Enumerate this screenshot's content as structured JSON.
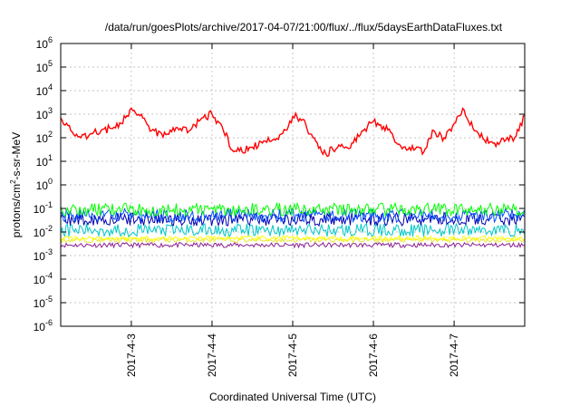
{
  "chart_data": {
    "type": "line",
    "title": "/data/run/goesPlots/archive/2017-04-07/21:00/flux/../flux/5daysEarthDataFluxes.txt",
    "xlabel": "Coordinated Universal Time (UTC)",
    "ylabel": "protons/cm²-s-sr-MeV",
    "yscale": "log",
    "ylim": [
      1e-06,
      1000000.0
    ],
    "y_ticks": [
      {
        "value": 1e-06,
        "base": "10",
        "exp": "-6"
      },
      {
        "value": 1e-05,
        "base": "10",
        "exp": "-5"
      },
      {
        "value": 0.0001,
        "base": "10",
        "exp": "-4"
      },
      {
        "value": 0.001,
        "base": "10",
        "exp": "-3"
      },
      {
        "value": 0.01,
        "base": "10",
        "exp": "-2"
      },
      {
        "value": 0.1,
        "base": "10",
        "exp": "-1"
      },
      {
        "value": 1,
        "base": "10",
        "exp": "0"
      },
      {
        "value": 10.0,
        "base": "10",
        "exp": "1"
      },
      {
        "value": 100.0,
        "base": "10",
        "exp": "2"
      },
      {
        "value": 1000.0,
        "base": "10",
        "exp": "3"
      },
      {
        "value": 10000.0,
        "base": "10",
        "exp": "4"
      },
      {
        "value": 100000.0,
        "base": "10",
        "exp": "5"
      },
      {
        "value": 1000000.0,
        "base": "10",
        "exp": "6"
      }
    ],
    "xlim": [
      "2017-04-02 03:00",
      "2017-04-07 21:00"
    ],
    "x_ticks": [
      "2017-4-3",
      "2017-4-4",
      "2017-4-5",
      "2017-4-6",
      "2017-4-7"
    ],
    "x_tick_dates": [
      "2017-04-03",
      "2017-04-04",
      "2017-04-05",
      "2017-04-06",
      "2017-04-07"
    ],
    "grid": true,
    "series": [
      {
        "color": "#ff0000",
        "x": [
          "2017-04-02 03:00",
          "2017-04-02 06:00",
          "2017-04-02 09:00",
          "2017-04-02 12:00",
          "2017-04-02 15:00",
          "2017-04-02 18:00",
          "2017-04-02 21:00",
          "2017-04-03 00:00",
          "2017-04-03 03:00",
          "2017-04-03 06:00",
          "2017-04-03 09:00",
          "2017-04-03 12:00",
          "2017-04-03 15:00",
          "2017-04-03 18:00",
          "2017-04-03 21:00",
          "2017-04-04 00:00",
          "2017-04-04 03:00",
          "2017-04-04 06:00",
          "2017-04-04 09:00",
          "2017-04-04 12:00",
          "2017-04-04 15:00",
          "2017-04-04 18:00",
          "2017-04-04 21:00",
          "2017-04-05 00:00",
          "2017-04-05 03:00",
          "2017-04-05 06:00",
          "2017-04-05 09:00",
          "2017-04-05 12:00",
          "2017-04-05 15:00",
          "2017-04-05 18:00",
          "2017-04-05 21:00",
          "2017-04-06 00:00",
          "2017-04-06 03:00",
          "2017-04-06 06:00",
          "2017-04-06 09:00",
          "2017-04-06 12:00",
          "2017-04-06 15:00",
          "2017-04-06 18:00",
          "2017-04-06 21:00",
          "2017-04-07 00:00",
          "2017-04-07 03:00",
          "2017-04-07 06:00",
          "2017-04-07 09:00",
          "2017-04-07 12:00",
          "2017-04-07 15:00",
          "2017-04-07 18:00",
          "2017-04-07 21:00"
        ],
        "values": [
          700,
          200,
          100,
          150,
          200,
          250,
          400,
          1800,
          1000,
          200,
          150,
          180,
          200,
          250,
          700,
          1000,
          300,
          30,
          25,
          40,
          60,
          80,
          150,
          800,
          600,
          100,
          20,
          30,
          40,
          60,
          200,
          500,
          300,
          100,
          40,
          30,
          25,
          200,
          100,
          400,
          1500,
          200,
          80,
          60,
          70,
          100,
          900
        ]
      },
      {
        "color": "#00ff00",
        "level": 0.09
      },
      {
        "color": "#0050ff",
        "level": 0.05
      },
      {
        "color": "#0000b0",
        "level": 0.035
      },
      {
        "color": "#00c8c8",
        "level": 0.012
      },
      {
        "color": "#ffff00",
        "level": 0.0055
      },
      {
        "color": "#e8e830",
        "level": 0.0045
      },
      {
        "color": "#8b2090",
        "level": 0.0028
      }
    ]
  }
}
